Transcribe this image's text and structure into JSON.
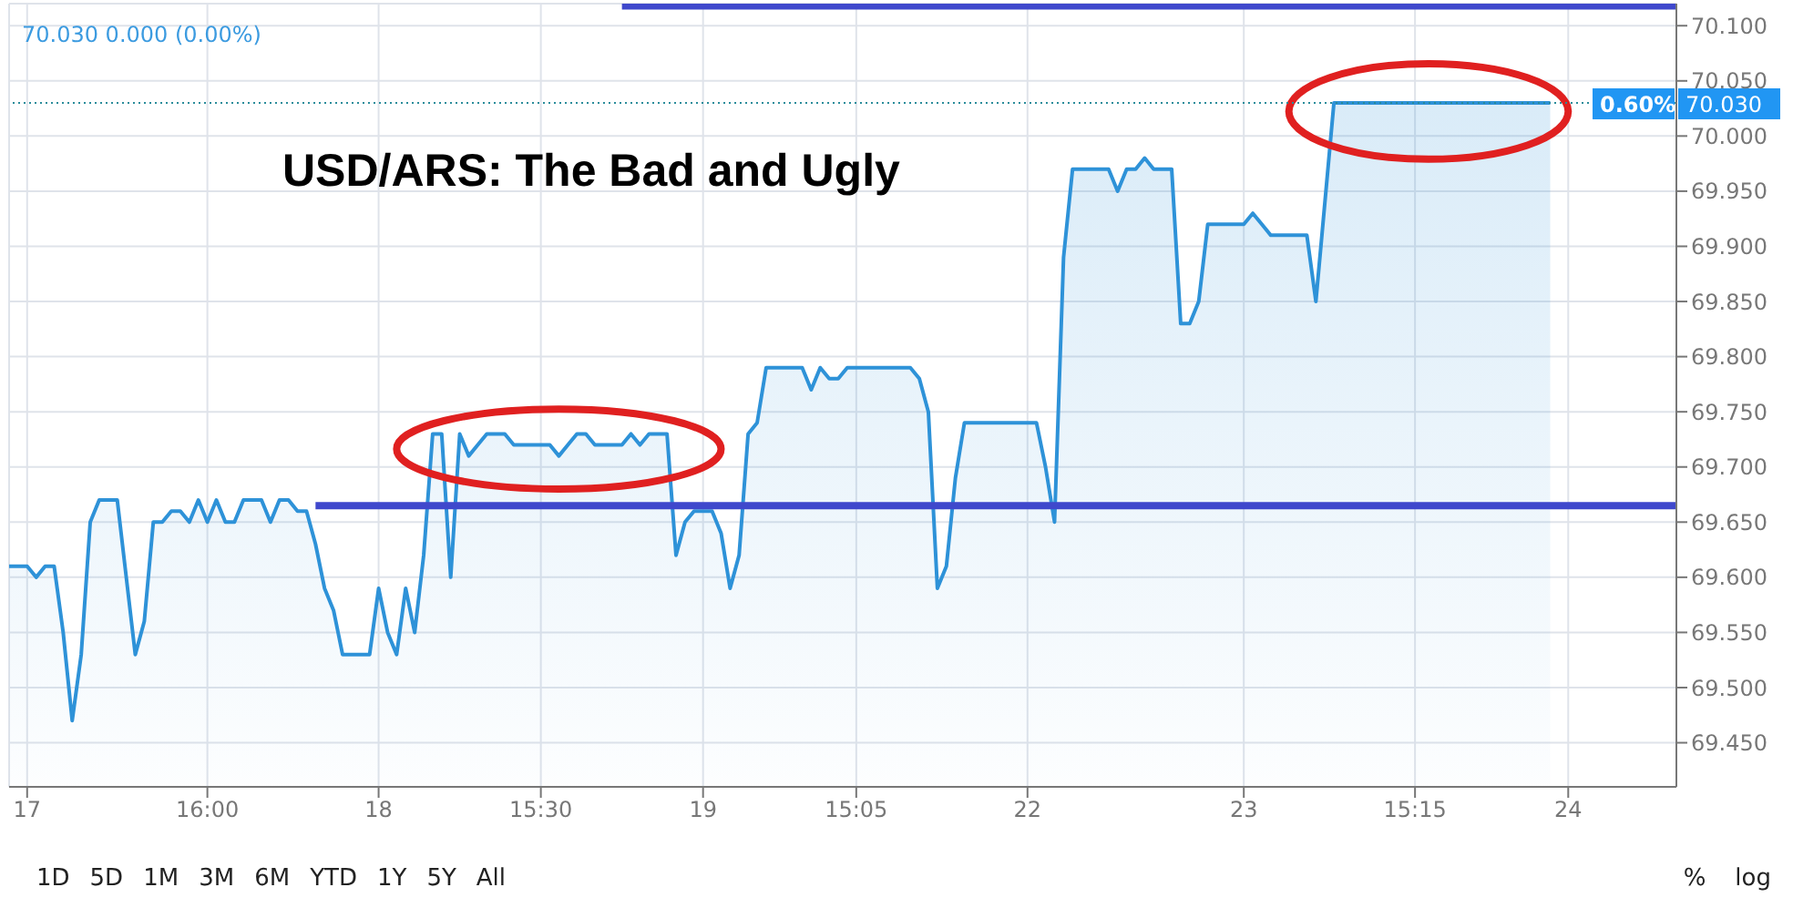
{
  "chart_data": {
    "type": "area",
    "title": "USD/ARS: The Bad and Ugly",
    "categories": [
      null,
      null,
      "17",
      null,
      null,
      null,
      null,
      null,
      null,
      null,
      null,
      null,
      null,
      null,
      null,
      null,
      null,
      null,
      null,
      null,
      null,
      null,
      "16:00",
      null,
      null,
      null,
      null,
      null,
      null,
      null,
      null,
      null,
      null,
      null,
      null,
      null,
      null,
      null,
      null,
      null,
      null,
      "18",
      null,
      null,
      null,
      null,
      null,
      null,
      null,
      null,
      null,
      null,
      null,
      null,
      null,
      null,
      null,
      null,
      null,
      "15:30",
      null,
      null,
      null,
      null,
      null,
      null,
      null,
      null,
      null,
      null,
      null,
      null,
      null,
      null,
      null,
      null,
      null,
      "19",
      null,
      null,
      null,
      null,
      null,
      null,
      null,
      null,
      null,
      null,
      null,
      null,
      null,
      null,
      null,
      null,
      "15:05",
      null,
      null,
      null,
      null,
      null,
      null,
      null,
      null,
      null,
      null,
      null,
      null,
      null,
      null,
      null,
      null,
      null,
      null,
      "22",
      null,
      null,
      null,
      null,
      null,
      null,
      null,
      null,
      null,
      null,
      null,
      null,
      null,
      null,
      null,
      null,
      null,
      null,
      null,
      null,
      null,
      null,
      null,
      "23",
      null,
      null,
      null,
      null,
      null,
      null,
      null,
      null,
      null,
      null,
      null,
      null,
      null,
      null,
      null,
      null,
      null,
      null,
      "15:15",
      null,
      null,
      null,
      null,
      null,
      null,
      null,
      null,
      null,
      null,
      null,
      null,
      null,
      null,
      null,
      null,
      "24",
      null,
      null,
      null,
      null,
      null,
      null,
      null,
      null,
      null,
      null,
      null,
      null
    ],
    "ylim": [
      69.41,
      70.12
    ],
    "yticks": [
      {
        "value": 69.45,
        "label": "69.450"
      },
      {
        "value": 69.5,
        "label": "69.500"
      },
      {
        "value": 69.55,
        "label": "69.550"
      },
      {
        "value": 69.6,
        "label": "69.600"
      },
      {
        "value": 69.65,
        "label": "69.650"
      },
      {
        "value": 69.7,
        "label": "69.700"
      },
      {
        "value": 69.75,
        "label": "69.750"
      },
      {
        "value": 69.8,
        "label": "69.800"
      },
      {
        "value": 69.85,
        "label": "69.850"
      },
      {
        "value": 69.9,
        "label": "69.900"
      },
      {
        "value": 69.95,
        "label": "69.950"
      },
      {
        "value": 70,
        "label": "70.000"
      },
      {
        "value": 70.05,
        "label": "70.050"
      },
      {
        "value": 70.1,
        "label": "70.100"
      }
    ],
    "grid": true,
    "marker": "none",
    "series": [
      {
        "color": "#2e92d8",
        "values": [
          69.61,
          69.61,
          69.61,
          69.6,
          69.61,
          69.61,
          69.55,
          69.47,
          69.53,
          69.65,
          69.67,
          69.67,
          69.67,
          69.6,
          69.53,
          69.56,
          69.65,
          69.65,
          69.66,
          69.66,
          69.65,
          69.67,
          69.65,
          69.67,
          69.65,
          69.65,
          69.67,
          69.67,
          69.67,
          69.65,
          69.67,
          69.67,
          69.66,
          69.66,
          69.63,
          69.59,
          69.57,
          69.53,
          69.53,
          69.53,
          69.53,
          69.59,
          69.55,
          69.53,
          69.59,
          69.55,
          69.62,
          69.73,
          69.73,
          69.6,
          69.73,
          69.71,
          69.72,
          69.73,
          69.73,
          69.73,
          69.72,
          69.72,
          69.72,
          69.72,
          69.72,
          69.71,
          69.72,
          69.73,
          69.73,
          69.72,
          69.72,
          69.72,
          69.72,
          69.73,
          69.72,
          69.73,
          69.73,
          69.73,
          69.62,
          69.65,
          69.66,
          69.66,
          69.66,
          69.64,
          69.59,
          69.62,
          69.73,
          69.74,
          69.79,
          69.79,
          69.79,
          69.79,
          69.79,
          69.77,
          69.79,
          69.78,
          69.78,
          69.79,
          69.79,
          69.79,
          69.79,
          69.79,
          69.79,
          69.79,
          69.79,
          69.78,
          69.75,
          69.59,
          69.61,
          69.69,
          69.74,
          69.74,
          69.74,
          69.74,
          69.74,
          69.74,
          69.74,
          69.74,
          69.74,
          69.7,
          69.65,
          69.89,
          69.97,
          69.97,
          69.97,
          69.97,
          69.97,
          69.95,
          69.97,
          69.97,
          69.98,
          69.97,
          69.97,
          69.97,
          69.83,
          69.83,
          69.85,
          69.92,
          69.92,
          69.92,
          69.92,
          69.92,
          69.93,
          69.92,
          69.91,
          69.91,
          69.91,
          69.91,
          69.91,
          69.85,
          69.94,
          70.03,
          70.03,
          70.03,
          70.03,
          70.03,
          70.03,
          70.03,
          70.03,
          70.03,
          70.03,
          70.03,
          70.03,
          70.03,
          70.03,
          70.03,
          70.03,
          70.03,
          70.03,
          70.03,
          70.03,
          70.03,
          70.03,
          70.03,
          70.03,
          70.03,
          null,
          null,
          null,
          null,
          null,
          null,
          null,
          null,
          null,
          null,
          null,
          null,
          null,
          null
        ]
      },
      {
        "type": "line",
        "color": "#3f48cc",
        "values": [
          null,
          null,
          null,
          null,
          null,
          null,
          null,
          null,
          null,
          null,
          null,
          null,
          null,
          null,
          null,
          null,
          null,
          null,
          null,
          null,
          null,
          null,
          null,
          null,
          null,
          null,
          null,
          null,
          null,
          null,
          null,
          null,
          null,
          null,
          69.665,
          69.665,
          69.665,
          69.665,
          69.665,
          69.665,
          69.665,
          69.665,
          69.665,
          69.665,
          69.665,
          69.665,
          69.665,
          69.665,
          69.665,
          69.665,
          69.665,
          69.665,
          69.665,
          69.665,
          69.665,
          69.665,
          69.665,
          69.665,
          69.665,
          69.665,
          69.665,
          69.665,
          69.665,
          69.665,
          69.665,
          69.665,
          69.665,
          69.665,
          69.665,
          69.665,
          69.665,
          69.665,
          69.665,
          69.665,
          69.665,
          69.665,
          69.665,
          69.665,
          69.665,
          69.665,
          69.665,
          69.665,
          69.665,
          69.665,
          69.665,
          69.665,
          69.665,
          69.665,
          69.665,
          69.665,
          69.665,
          69.665,
          69.665,
          69.665,
          69.665,
          69.665,
          69.665,
          69.665,
          69.665,
          69.665,
          69.665,
          69.665,
          69.665,
          69.665,
          69.665,
          69.665,
          69.665,
          69.665,
          69.665,
          69.665,
          69.665,
          69.665,
          69.665,
          69.665,
          69.665,
          69.665,
          69.665,
          69.665,
          69.665,
          69.665,
          69.665,
          69.665,
          69.665,
          69.665,
          69.665,
          69.665,
          69.665,
          69.665,
          69.665,
          69.665,
          69.665,
          69.665,
          69.665,
          69.665,
          69.665,
          69.665,
          69.665,
          69.665,
          69.665,
          69.665,
          69.665,
          69.665,
          69.665,
          69.665,
          69.665,
          69.665,
          69.665,
          69.665,
          69.665,
          69.665,
          69.665,
          69.665,
          69.665,
          69.665,
          69.665,
          69.665,
          69.665,
          69.665,
          69.665,
          69.665,
          69.665,
          69.665,
          69.665,
          69.665,
          69.665,
          69.665,
          69.665,
          69.665,
          69.665,
          69.665,
          69.665,
          69.665,
          69.665,
          69.665,
          69.665,
          69.665,
          69.665,
          69.665,
          69.665,
          69.665,
          69.665,
          69.665,
          69.665,
          69.665,
          69.665,
          69.665
        ]
      },
      {
        "type": "line",
        "color": "#3f48cc",
        "values": [
          null,
          null,
          null,
          null,
          null,
          null,
          null,
          null,
          null,
          null,
          null,
          null,
          null,
          null,
          null,
          null,
          null,
          null,
          null,
          null,
          null,
          null,
          null,
          null,
          null,
          null,
          null,
          null,
          null,
          null,
          null,
          null,
          null,
          null,
          null,
          null,
          null,
          null,
          null,
          null,
          null,
          null,
          null,
          null,
          null,
          null,
          null,
          null,
          null,
          null,
          null,
          null,
          null,
          null,
          null,
          null,
          null,
          null,
          null,
          null,
          null,
          null,
          null,
          null,
          null,
          null,
          null,
          null,
          70.118,
          70.118,
          70.118,
          70.118,
          70.118,
          70.118,
          70.118,
          70.118,
          70.118,
          70.118,
          70.118,
          70.118,
          70.118,
          70.118,
          70.118,
          70.118,
          70.118,
          70.118,
          70.118,
          70.118,
          70.118,
          70.118,
          70.118,
          70.118,
          70.118,
          70.118,
          70.118,
          70.118,
          70.118,
          70.118,
          70.118,
          70.118,
          70.118,
          70.118,
          70.118,
          70.118,
          70.118,
          70.118,
          70.118,
          70.118,
          70.118,
          70.118,
          70.118,
          70.118,
          70.118,
          70.118,
          70.118,
          70.118,
          70.118,
          70.118,
          70.118,
          70.118,
          70.118,
          70.118,
          70.118,
          70.118,
          70.118,
          70.118,
          70.118,
          70.118,
          70.118,
          70.118,
          70.118,
          70.118,
          70.118,
          70.118,
          70.118,
          70.118,
          70.118,
          70.118,
          70.118,
          70.118,
          70.118,
          70.118,
          70.118,
          70.118,
          70.118,
          70.118,
          70.118,
          70.118,
          70.118,
          70.118,
          70.118,
          70.118,
          70.118,
          70.118,
          70.118,
          70.118,
          70.118,
          70.118,
          70.118,
          70.118,
          70.118,
          70.118,
          70.118,
          70.118,
          70.118,
          70.118,
          70.118,
          70.118,
          70.118,
          70.118,
          70.118,
          70.118,
          70.118,
          70.118,
          70.118,
          70.118,
          70.118,
          70.118,
          70.118,
          70.118,
          70.118,
          70.118,
          70.118,
          70.118,
          70.118,
          70.118
        ]
      }
    ],
    "ref_lines": [
      {
        "axis": "y",
        "value": 70.03,
        "label": "70.030",
        "color": "#2a8c9a",
        "line_style": "dotted"
      }
    ],
    "annotations": [
      "70.030  0.000 (0.00%)",
      {
        "text": "0.60%",
        "y": 70.03
      },
      "1D",
      "5D",
      "1M",
      "3M",
      "6M",
      "YTD",
      "1Y",
      "5Y",
      "All",
      "%",
      "log"
    ]
  }
}
